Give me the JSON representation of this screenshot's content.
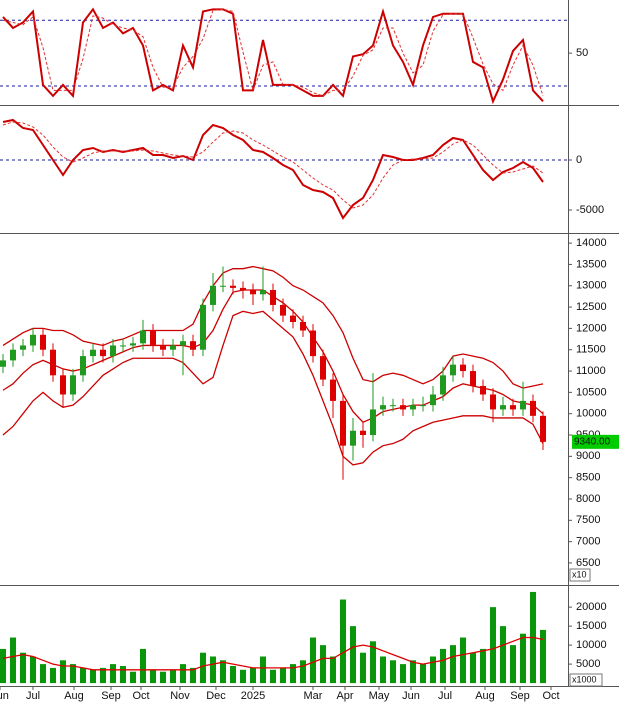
{
  "chart_data": [
    {
      "type": "line",
      "ylim": [
        4.5,
        98.5
      ],
      "yticks": [
        50
      ],
      "hlines": [
        80,
        20
      ],
      "hline_color": "#1a1aa0",
      "series": [
        {
          "color": "#cc0000",
          "dash": false,
          "values": [
            83,
            73,
            78,
            88,
            21,
            11,
            21,
            11,
            78,
            90,
            73,
            78,
            68,
            73,
            57,
            16,
            21,
            16,
            57,
            37,
            88,
            90,
            90,
            86,
            16,
            16,
            62,
            21,
            21,
            21,
            16,
            11,
            11,
            21,
            11,
            47,
            49,
            57,
            88,
            57,
            42,
            21,
            57,
            83,
            86,
            86,
            86,
            42,
            37,
            6,
            26,
            52,
            62,
            16,
            6
          ]
        },
        {
          "color": "#e03030",
          "dash": true,
          "values": [
            80,
            78,
            76,
            83,
            55,
            16,
            16,
            16,
            45,
            84,
            82,
            76,
            73,
            71,
            65,
            37,
            19,
            19,
            37,
            47,
            63,
            89,
            90,
            88,
            51,
            16,
            39,
            42,
            21,
            21,
            19,
            14,
            11,
            16,
            16,
            29,
            48,
            53,
            73,
            73,
            50,
            32,
            39,
            70,
            85,
            86,
            86,
            64,
            40,
            22,
            16,
            39,
            57,
            39,
            11
          ]
        }
      ]
    },
    {
      "type": "line",
      "ylim": [
        -7200,
        5300
      ],
      "yticks": [
        0,
        -5000
      ],
      "hlines": [
        0
      ],
      "hline_color": "#1a1aa0",
      "series": [
        {
          "color": "#cc0000",
          "dash": false,
          "values": [
            3800,
            4000,
            3200,
            3000,
            1500,
            0,
            -1500,
            0,
            1000,
            1200,
            800,
            1000,
            800,
            1000,
            1200,
            500,
            500,
            200,
            400,
            0,
            2500,
            3500,
            3200,
            2500,
            2000,
            1000,
            800,
            200,
            -500,
            -1000,
            -2500,
            -3000,
            -3200,
            -3800,
            -5800,
            -4500,
            -3800,
            -2000,
            500,
            300,
            0,
            0,
            200,
            500,
            1500,
            2200,
            2000,
            500,
            -1000,
            -2000,
            -1200,
            -800,
            -200,
            -800,
            -2200
          ]
        },
        {
          "color": "#e03030",
          "dash": true,
          "values": [
            3500,
            3800,
            3700,
            3300,
            2500,
            1300,
            300,
            -200,
            200,
            700,
            900,
            900,
            900,
            900,
            1000,
            900,
            700,
            500,
            400,
            300,
            800,
            1800,
            2700,
            2900,
            2700,
            2000,
            1500,
            900,
            300,
            -200,
            -1000,
            -1800,
            -2500,
            -3000,
            -4000,
            -4800,
            -4500,
            -3500,
            -1800,
            -500,
            0,
            100,
            100,
            200,
            800,
            1600,
            2000,
            1500,
            500,
            -500,
            -1300,
            -1200,
            -900,
            -600,
            -1300
          ]
        }
      ]
    },
    {
      "type": "candlestick",
      "ylim": [
        6030,
        14190
      ],
      "yticks": [
        14000,
        13500,
        13000,
        12500,
        12000,
        11500,
        11000,
        10500,
        10000,
        9500,
        9000,
        8500,
        8000,
        7500,
        7000,
        6500
      ],
      "scale_label": "x10",
      "up_color": "#1f9a1f",
      "down_color": "#dd0000",
      "last_price": {
        "value": 9340,
        "label": "9340.00"
      },
      "last_price_color": "#00cc00",
      "open": [
        11100,
        11250,
        11500,
        11600,
        11850,
        11500,
        10900,
        10450,
        10900,
        11350,
        11500,
        11350,
        11600,
        11600,
        11650,
        11950,
        11600,
        11500,
        11600,
        11700,
        11500,
        12550,
        13000,
        13000,
        12950,
        12900,
        12800,
        12900,
        12550,
        12300,
        12150,
        11950,
        11350,
        10800,
        10300,
        9250,
        9600,
        9500,
        10100,
        10200,
        10200,
        10100,
        10200,
        10200,
        10450,
        10900,
        11150,
        11000,
        10650,
        10450,
        10100,
        10200,
        10100,
        10300,
        9950
      ],
      "high": [
        11400,
        11650,
        11750,
        12000,
        12000,
        11650,
        11050,
        11050,
        11500,
        11650,
        11650,
        11750,
        11750,
        11800,
        12200,
        12100,
        11750,
        11750,
        11850,
        11850,
        12700,
        13300,
        13450,
        13150,
        13100,
        13050,
        13450,
        13050,
        12700,
        12450,
        12300,
        12100,
        11500,
        10950,
        10450,
        9900,
        9800,
        10950,
        10400,
        10350,
        10350,
        10350,
        10400,
        10650,
        11100,
        11350,
        11300,
        11150,
        10800,
        10600,
        10400,
        10350,
        10750,
        10450,
        10050
      ],
      "low": [
        10950,
        11100,
        11350,
        11450,
        11350,
        10750,
        10150,
        10300,
        10750,
        11200,
        11200,
        11200,
        11450,
        11450,
        11500,
        11450,
        11350,
        11350,
        10900,
        11350,
        11350,
        12400,
        12850,
        12800,
        12700,
        12550,
        12650,
        12400,
        12150,
        12000,
        11800,
        11200,
        10650,
        9900,
        8450,
        8900,
        9200,
        9350,
        9950,
        10050,
        9950,
        9950,
        10050,
        10050,
        10300,
        10750,
        10850,
        10500,
        10300,
        9800,
        9950,
        9950,
        9950,
        9800,
        9150
      ],
      "close": [
        11250,
        11500,
        11600,
        11850,
        11500,
        10900,
        10450,
        10900,
        11350,
        11500,
        11350,
        11600,
        11600,
        11650,
        11950,
        11600,
        11500,
        11600,
        11700,
        11500,
        12550,
        13000,
        13000,
        12950,
        12900,
        12800,
        12900,
        12550,
        12300,
        12150,
        11950,
        11350,
        10800,
        10300,
        9250,
        9600,
        9500,
        10100,
        10200,
        10200,
        10100,
        10200,
        10200,
        10450,
        10900,
        11150,
        11000,
        10650,
        10450,
        10100,
        10200,
        10100,
        10300,
        9950,
        9340
      ],
      "series": [
        {
          "color": "#cc0000",
          "dash": false,
          "values": [
            11600,
            11750,
            11900,
            12000,
            12000,
            11950,
            11950,
            11850,
            11700,
            11650,
            11600,
            11700,
            11750,
            11850,
            11950,
            11950,
            11950,
            11950,
            11950,
            12100,
            12600,
            13000,
            13300,
            13400,
            13400,
            13450,
            13400,
            13350,
            13200,
            13000,
            12900,
            12750,
            12600,
            12300,
            11900,
            11300,
            10800,
            10750,
            10900,
            10950,
            10900,
            10800,
            10700,
            10800,
            11000,
            11350,
            11400,
            11350,
            11300,
            11200,
            11000,
            10700,
            10600,
            10650,
            10700
          ]
        },
        {
          "color": "#cc0000",
          "dash": false,
          "values": [
            10550,
            10700,
            10950,
            11150,
            11250,
            11150,
            11050,
            11000,
            11050,
            11150,
            11250,
            11350,
            11450,
            11550,
            11600,
            11600,
            11600,
            11600,
            11600,
            11550,
            11650,
            11950,
            12450,
            12850,
            12900,
            12900,
            12900,
            12750,
            12600,
            12400,
            12150,
            11800,
            11450,
            11000,
            10450,
            10050,
            9800,
            9900,
            10050,
            10100,
            10150,
            10200,
            10200,
            10300,
            10400,
            10600,
            10700,
            10650,
            10600,
            10550,
            10450,
            10300,
            10250,
            10200,
            10000
          ]
        },
        {
          "color": "#cc0000",
          "dash": false,
          "values": [
            9500,
            9700,
            10000,
            10300,
            10500,
            10300,
            10150,
            10200,
            10400,
            10650,
            10900,
            11050,
            11200,
            11300,
            11300,
            11300,
            11300,
            11300,
            11200,
            10950,
            10700,
            10850,
            11600,
            12300,
            12400,
            12350,
            12400,
            12200,
            12000,
            11800,
            11400,
            10900,
            10300,
            9700,
            9000,
            8800,
            8850,
            9100,
            9250,
            9300,
            9400,
            9600,
            9700,
            9800,
            9850,
            9900,
            9950,
            9950,
            9950,
            9900,
            9900,
            9900,
            9900,
            9750,
            9300
          ]
        }
      ]
    },
    {
      "type": "bar",
      "ylim": [
        -500,
        25300
      ],
      "yticks": [
        20000,
        15000,
        10000,
        5000
      ],
      "scale_label": "x1000",
      "color": "#0a960a",
      "values": [
        9000,
        12000,
        8000,
        7000,
        5000,
        4000,
        6000,
        5000,
        4000,
        3500,
        4000,
        5000,
        4500,
        3000,
        9000,
        3500,
        3000,
        3500,
        5000,
        4000,
        8000,
        7000,
        6000,
        4500,
        3500,
        4000,
        7000,
        3500,
        4000,
        5000,
        6000,
        12000,
        10000,
        7000,
        22000,
        15000,
        8000,
        11000,
        7000,
        6000,
        5000,
        6000,
        5000,
        7000,
        9000,
        10000,
        12000,
        8000,
        9000,
        20000,
        15000,
        10000,
        13000,
        24000,
        14000
      ],
      "series": [
        {
          "color": "#dd0000",
          "dash": false,
          "values": [
            6500,
            7000,
            7500,
            7000,
            6000,
            5000,
            4500,
            4500,
            4000,
            3500,
            3500,
            3500,
            3500,
            3500,
            3500,
            3500,
            3500,
            3500,
            3500,
            3500,
            4500,
            5000,
            5500,
            5000,
            4500,
            4000,
            4000,
            4000,
            4000,
            4000,
            4500,
            5500,
            6500,
            6500,
            8000,
            9500,
            10000,
            9500,
            8500,
            7500,
            6500,
            5500,
            5000,
            5500,
            6000,
            7000,
            7500,
            8000,
            8500,
            9000,
            10000,
            11000,
            12000,
            12000,
            11500
          ]
        }
      ],
      "xticks": [
        {
          "value": -0.3,
          "label": "Jun"
        },
        {
          "value": 3,
          "label": "Jul"
        },
        {
          "value": 7.1,
          "label": "Aug"
        },
        {
          "value": 10.8,
          "label": "Sep"
        },
        {
          "value": 13.8,
          "label": "Oct"
        },
        {
          "value": 17.7,
          "label": "Nov"
        },
        {
          "value": 21.3,
          "label": "Dec"
        },
        {
          "value": 25,
          "label": "2025"
        },
        {
          "value": 31,
          "label": "Mar"
        },
        {
          "value": 34.2,
          "label": "Apr"
        },
        {
          "value": 37.6,
          "label": "May"
        },
        {
          "value": 40.8,
          "label": "Jun"
        },
        {
          "value": 44.2,
          "label": "Jul"
        },
        {
          "value": 48.2,
          "label": "Aug"
        },
        {
          "value": 51.7,
          "label": "Sep"
        },
        {
          "value": 54.8,
          "label": "Oct"
        }
      ]
    }
  ]
}
